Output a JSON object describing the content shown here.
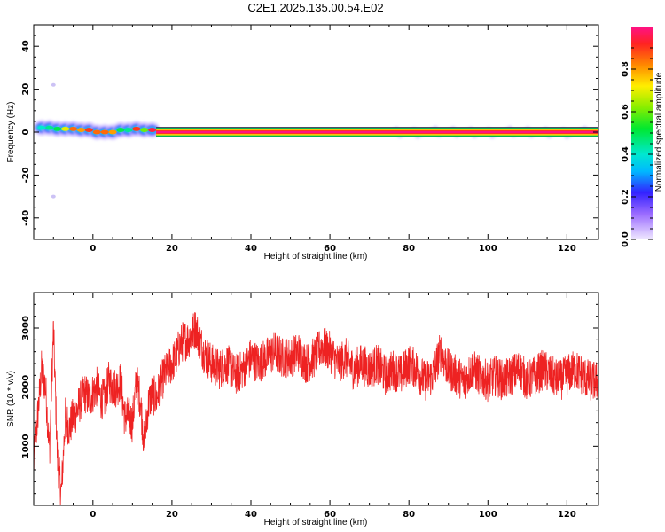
{
  "title": "C2E1.2025.135.00.54.E02",
  "chart_data": [
    {
      "type": "heatmap",
      "xlabel": "Height of straight line (km)",
      "ylabel": "Frequency (Hz)",
      "xlim": [
        -15,
        128
      ],
      "ylim": [
        -50,
        50
      ],
      "xticks": [
        0,
        20,
        40,
        60,
        80,
        100,
        120
      ],
      "yticks": [
        -40,
        -20,
        0,
        20,
        40
      ],
      "colorbar": {
        "label": "Normalized spectral amplitude",
        "range": [
          0,
          1
        ],
        "ticks": [
          0.0,
          0.2,
          0.4,
          0.6,
          0.8
        ]
      },
      "band": {
        "center": 0,
        "half_width": 1.5,
        "x_start": 16,
        "x_end": 128
      },
      "blobs": [
        {
          "x": -13,
          "y": 2,
          "amp": 0.4
        },
        {
          "x": -11,
          "y": 2,
          "amp": 0.45
        },
        {
          "x": -9,
          "y": 1.5,
          "amp": 0.5
        },
        {
          "x": -7,
          "y": 1.5,
          "amp": 0.7
        },
        {
          "x": -5,
          "y": 1.5,
          "amp": 0.85
        },
        {
          "x": -3,
          "y": 1,
          "amp": 0.8
        },
        {
          "x": -1,
          "y": 1,
          "amp": 0.9
        },
        {
          "x": 1,
          "y": 0,
          "amp": 0.85
        },
        {
          "x": 3,
          "y": 0,
          "amp": 0.85
        },
        {
          "x": 5,
          "y": 0,
          "amp": 0.8
        },
        {
          "x": 7,
          "y": 1,
          "amp": 0.5
        },
        {
          "x": 9,
          "y": 1,
          "amp": 0.45
        },
        {
          "x": 11,
          "y": 1.5,
          "amp": 0.9
        },
        {
          "x": 13,
          "y": 1,
          "amp": 0.6
        },
        {
          "x": 15,
          "y": 1,
          "amp": 0.95
        }
      ],
      "outliers": [
        {
          "x": -10,
          "y": -30,
          "amp": 0.05
        },
        {
          "x": -10,
          "y": 22,
          "amp": 0.03
        }
      ]
    },
    {
      "type": "line",
      "xlabel": "Height of straight line (km)",
      "ylabel": "SNR (10 * v/v)",
      "xlim": [
        -15,
        128
      ],
      "ylim": [
        0,
        3600
      ],
      "xticks": [
        0,
        20,
        40,
        60,
        80,
        100,
        120
      ],
      "yticks": [
        1000,
        2000,
        3000
      ],
      "color": "#ee2222",
      "series": [
        {
          "x": [
            -15,
            -14,
            -13,
            -12,
            -11,
            -10,
            -9,
            -8,
            -7,
            -6,
            -5,
            -4,
            -3,
            -2,
            -1,
            0,
            1,
            2,
            3,
            4,
            5,
            6,
            7,
            8,
            9,
            10,
            11,
            12,
            13,
            14,
            15,
            16,
            17,
            18,
            19,
            20,
            21,
            22,
            23,
            24,
            25,
            26,
            27,
            28,
            29,
            30,
            32,
            34,
            36,
            38,
            40,
            42,
            44,
            46,
            48,
            50,
            52,
            54,
            56,
            58,
            60,
            62,
            64,
            66,
            68,
            70,
            72,
            74,
            76,
            78,
            80,
            82,
            84,
            86,
            88,
            90,
            92,
            94,
            96,
            98,
            100,
            102,
            104,
            106,
            108,
            110,
            112,
            114,
            116,
            118,
            120,
            122,
            124,
            126,
            128
          ],
          "y": [
            700,
            1500,
            2300,
            2000,
            900,
            3000,
            800,
            200,
            1500,
            1300,
            1500,
            1600,
            1800,
            1900,
            1800,
            1900,
            2000,
            1800,
            1800,
            2100,
            2000,
            2000,
            2100,
            1500,
            1500,
            1400,
            2100,
            1800,
            1000,
            1700,
            1900,
            1800,
            2000,
            2200,
            2300,
            2400,
            2500,
            2700,
            2800,
            2800,
            2900,
            3000,
            2800,
            2600,
            2500,
            2400,
            2300,
            2400,
            2200,
            2300,
            2500,
            2400,
            2500,
            2600,
            2500,
            2500,
            2600,
            2400,
            2500,
            2700,
            2600,
            2400,
            2500,
            2300,
            2400,
            2300,
            2400,
            2200,
            2300,
            2200,
            2400,
            2300,
            2100,
            2200,
            2600,
            2300,
            2200,
            2100,
            2300,
            2200,
            2100,
            2200,
            2100,
            2200,
            2300,
            2100,
            2200,
            2300,
            2200,
            2100,
            2200,
            2300,
            2200,
            2100,
            2100
          ]
        }
      ]
    }
  ]
}
